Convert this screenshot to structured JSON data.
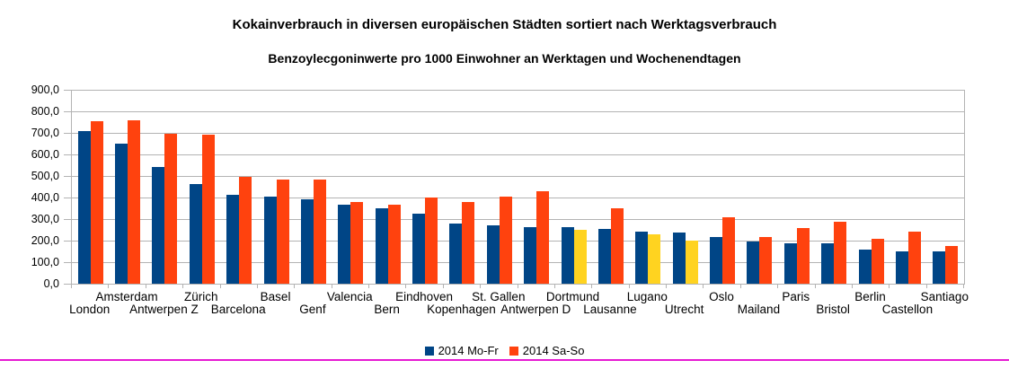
{
  "styles": {
    "background": "#FFFFFF",
    "grid_color": "#B3B3B3",
    "axis_color": "#B3B3B3",
    "text_color": "#000000",
    "magenta_line": "#E61AD2",
    "series_blue": "#004586",
    "series_red": "#FF420E",
    "series_yellow": "#FFD320"
  },
  "chart_data": {
    "type": "bar",
    "title": "Kokainverbrauch in diversen europäischen Städten sortiert nach Werktagsverbrauch",
    "subtitle": "Benzoylecgoninwerte pro 1000 Einwohner an Werktagen und Wochenendtagen",
    "categories": [
      "London",
      "Amsterdam",
      "Antwerpen Z",
      "Zürich",
      "Barcelona",
      "Basel",
      "Genf",
      "Valencia",
      "Bern",
      "Eindhoven",
      "Kopenhagen",
      "St. Gallen",
      "Antwerpen D",
      "Dortmund",
      "Lausanne",
      "Lugano",
      "Utrecht",
      "Oslo",
      "Mailand",
      "Paris",
      "Bristol",
      "Berlin",
      "Castellon",
      "Santiago"
    ],
    "series": [
      {
        "name": "2014 Mo-Fr",
        "color": "#004586",
        "values": [
          710,
          650,
          540,
          462,
          412,
          403,
          390,
          368,
          349,
          324,
          279,
          271,
          264,
          262,
          253,
          242,
          236,
          215,
          196,
          187,
          186,
          157,
          150,
          148
        ]
      },
      {
        "name": "2014 Sa-So",
        "color": "#FF420E",
        "values": [
          755,
          760,
          697,
          693,
          494,
          483,
          485,
          378,
          367,
          400,
          381,
          406,
          428,
          251,
          350,
          231,
          200,
          310,
          215,
          258,
          289,
          210,
          240,
          174
        ],
        "point_color_overrides": {
          "13": "#FFD320",
          "15": "#FFD320",
          "16": "#FFD320"
        }
      }
    ],
    "ylim": [
      0,
      900
    ],
    "y_tick_step": 100,
    "y_tick_labels": [
      "0,0",
      "100,0",
      "200,0",
      "300,0",
      "400,0",
      "500,0",
      "600,0",
      "700,0",
      "800,0",
      "900,0"
    ],
    "grid": true,
    "legend_position": "bottom",
    "x_label_rows": "staggered"
  }
}
